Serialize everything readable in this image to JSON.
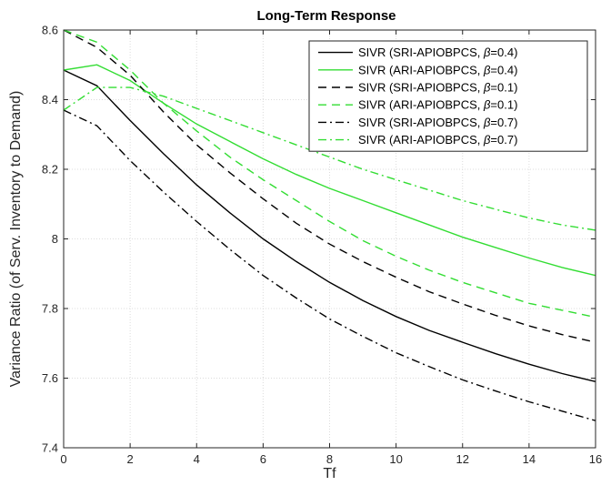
{
  "chart_data": {
    "type": "line",
    "title": "Long-Term Response",
    "xlabel": "Tf",
    "ylabel": "Variance Ratio (of Serv. Inventory to Demand)",
    "xlim": [
      0,
      16
    ],
    "ylim": [
      7.4,
      8.6
    ],
    "xticks": [
      0,
      2,
      4,
      6,
      8,
      10,
      12,
      14,
      16
    ],
    "yticks": [
      7.4,
      7.6,
      7.8,
      8,
      8.2,
      8.4,
      8.6
    ],
    "xtick_labels": [
      "0",
      "2",
      "4",
      "6",
      "8",
      "10",
      "12",
      "14",
      "16"
    ],
    "ytick_labels": [
      "7.4",
      "7.6",
      "7.8",
      "8",
      "8.2",
      "8.4",
      "8.6"
    ],
    "grid": true,
    "legend_position": "top-right",
    "x": [
      0,
      1,
      2,
      3,
      4,
      5,
      6,
      7,
      8,
      9,
      10,
      11,
      12,
      13,
      14,
      15,
      16
    ],
    "series": [
      {
        "name_prefix": "SIVR (SRI-APIOBPCS, ",
        "name_beta": "β",
        "name_suffix": "=0.4)",
        "color": "#000000",
        "dash": "solid",
        "values": [
          8.485,
          8.44,
          8.34,
          8.245,
          8.155,
          8.075,
          8.0,
          7.935,
          7.875,
          7.823,
          7.777,
          7.737,
          7.703,
          7.67,
          7.64,
          7.613,
          7.59
        ]
      },
      {
        "name_prefix": "SIVR (ARI-APIOBPCS, ",
        "name_beta": "β",
        "name_suffix": "=0.4)",
        "color": "#33dd33",
        "dash": "solid",
        "values": [
          8.485,
          8.5,
          8.455,
          8.39,
          8.33,
          8.28,
          8.23,
          8.185,
          8.145,
          8.11,
          8.075,
          8.04,
          8.005,
          7.975,
          7.945,
          7.918,
          7.895
        ]
      },
      {
        "name_prefix": "SIVR (SRI-APIOBPCS, ",
        "name_beta": "β",
        "name_suffix": "=0.1)",
        "color": "#000000",
        "dash": "dashed",
        "values": [
          8.6,
          8.55,
          8.47,
          8.365,
          8.27,
          8.19,
          8.115,
          8.045,
          7.985,
          7.935,
          7.89,
          7.848,
          7.813,
          7.78,
          7.75,
          7.725,
          7.703
        ]
      },
      {
        "name_prefix": "SIVR (ARI-APIOBPCS, ",
        "name_beta": "β",
        "name_suffix": "=0.1)",
        "color": "#33dd33",
        "dash": "dashed",
        "values": [
          8.6,
          8.565,
          8.485,
          8.39,
          8.31,
          8.235,
          8.17,
          8.11,
          8.05,
          7.995,
          7.95,
          7.91,
          7.875,
          7.845,
          7.815,
          7.795,
          7.775
        ]
      },
      {
        "name_prefix": "SIVR (SRI-APIOBPCS, ",
        "name_beta": "β",
        "name_suffix": "=0.7)",
        "color": "#000000",
        "dash": "dashdot",
        "values": [
          8.37,
          8.325,
          8.225,
          8.135,
          8.05,
          7.97,
          7.895,
          7.83,
          7.77,
          7.72,
          7.673,
          7.633,
          7.595,
          7.563,
          7.532,
          7.505,
          7.478
        ]
      },
      {
        "name_prefix": "SIVR (ARI-APIOBPCS, ",
        "name_beta": "β",
        "name_suffix": "=0.7)",
        "color": "#33dd33",
        "dash": "dashdot",
        "values": [
          8.37,
          8.435,
          8.435,
          8.41,
          8.375,
          8.34,
          8.305,
          8.27,
          8.235,
          8.2,
          8.17,
          8.14,
          8.11,
          8.085,
          8.06,
          8.04,
          8.025
        ]
      }
    ]
  }
}
